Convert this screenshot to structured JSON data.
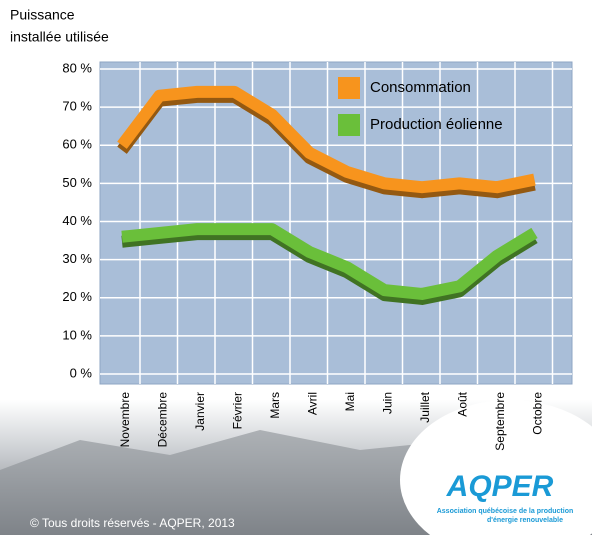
{
  "chart_data": {
    "type": "line",
    "y_label_lines": [
      "Puissance",
      "installée utilisée"
    ],
    "categories": [
      "Novembre",
      "Décembre",
      "Janvier",
      "Février",
      "Mars",
      "Avril",
      "Mai",
      "Juin",
      "Juillet",
      "Août",
      "Septembre",
      "Octobre"
    ],
    "series": [
      {
        "name": "Consommation",
        "color": "#f7941d",
        "values": [
          60,
          73,
          74,
          74,
          68,
          58,
          53,
          50,
          49,
          50,
          49,
          51
        ]
      },
      {
        "name": "Production éolienne",
        "color": "#6abf3a",
        "values": [
          36,
          37,
          38,
          38,
          38,
          32,
          28,
          22,
          21,
          23,
          31,
          37
        ]
      }
    ],
    "ylim": [
      0,
      80
    ],
    "yticks": [
      {
        "value": 0,
        "label": "0 %"
      },
      {
        "value": 10,
        "label": "10 %"
      },
      {
        "value": 20,
        "label": "20 %"
      },
      {
        "value": 30,
        "label": "30 %"
      },
      {
        "value": 40,
        "label": "40 %"
      },
      {
        "value": 50,
        "label": "50 %"
      },
      {
        "value": 60,
        "label": "60 %"
      },
      {
        "value": 70,
        "label": "70 %"
      },
      {
        "value": 80,
        "label": "80 %"
      }
    ],
    "grid": true,
    "legend": "top-right"
  },
  "footer": {
    "copyright": "© Tous droits réservés - AQPER, 2013",
    "logo": "AQPER",
    "logo_lines": [
      "Association québécoise de la production",
      "d'énergie renouvelable"
    ]
  }
}
